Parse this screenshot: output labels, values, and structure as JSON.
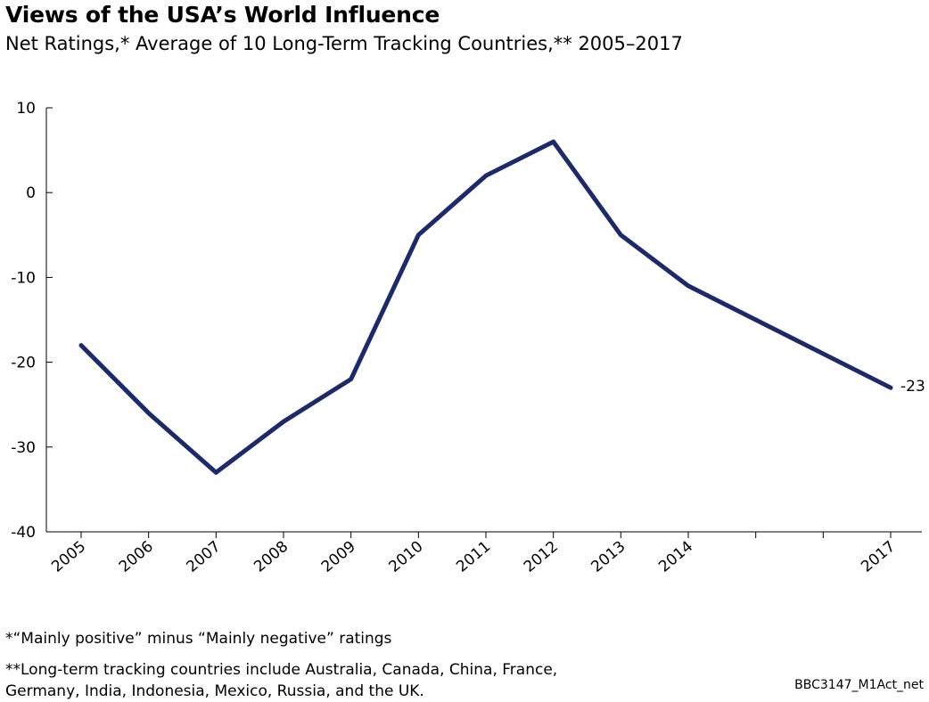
{
  "title": "Views of the USA’s World Influence",
  "subtitle": "Net Ratings,* Average of 10 Long-Term Tracking Countries,** 2005–2017",
  "footnotes": {
    "note1": "*“Mainly positive” minus “Mainly negative” ratings",
    "note2": "**Long-term tracking countries include Australia, Canada, China, France, Germany, India, Indonesia, Mexico, Russia, and the UK."
  },
  "code": "BBC3147_M1Act_net",
  "chart_data": {
    "type": "line",
    "title": "Views of the USA’s World Influence",
    "subtitle": "Net Ratings,* Average of 10 Long-Term Tracking Countries,** 2005–2017",
    "xlabel": "",
    "ylabel": "",
    "x": [
      2005,
      2006,
      2007,
      2008,
      2009,
      2010,
      2011,
      2012,
      2013,
      2014,
      2017
    ],
    "x_ticks": [
      2005,
      2006,
      2007,
      2008,
      2009,
      2010,
      2011,
      2012,
      2013,
      2014,
      2015,
      2016,
      2017
    ],
    "x_tick_labels": [
      "2005",
      "2006",
      "2007",
      "2008",
      "2009",
      "2010",
      "2011",
      "2012",
      "2013",
      "2014",
      "",
      "",
      "2017"
    ],
    "xlim": [
      2005,
      2017
    ],
    "ylim": [
      -40,
      10
    ],
    "y_ticks": [
      10,
      0,
      -10,
      -20,
      -30,
      -40
    ],
    "y_tick_labels": [
      "10",
      "0",
      "-10",
      "-20",
      "-30",
      "-40"
    ],
    "series": [
      {
        "values": [
          -18,
          -26,
          -33,
          -27,
          -22,
          -5,
          2,
          6,
          -5,
          -11,
          -23
        ],
        "color": "#1c2a6b"
      }
    ],
    "end_label": "-23",
    "grid": false,
    "legend": "none"
  }
}
